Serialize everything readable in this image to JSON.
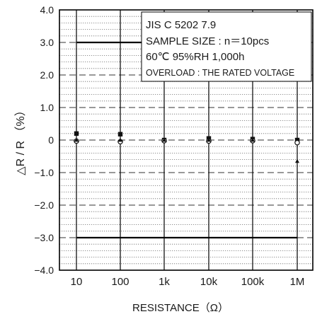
{
  "chart_data": {
    "type": "scatter",
    "xlabel": "RESISTANCE（Ω）",
    "ylabel": "△R / R （%）",
    "x_categories": [
      "10",
      "100",
      "1k",
      "10k",
      "100k",
      "1M"
    ],
    "y_ticks": [
      "4.0",
      "3.0",
      "2.0",
      "1.0",
      "0",
      "−1.0",
      "−2.0",
      "−3.0",
      "−4.0"
    ],
    "ylim": [
      -4.0,
      4.0
    ],
    "grid": "dotted minor every 0.2%, dashed major every 1.0%",
    "limits": [
      3.0,
      -3.0
    ],
    "annotations": [
      "JIS C 5202 7.9",
      "SAMPLE SIZE : n＝10pcs",
      "60℃ 95%RH 1,000h",
      "OVERLOAD : THE RATED VOLTAGE"
    ],
    "series": [
      {
        "marker": "filled-square",
        "values": [
          0.2,
          0.18,
          0.0,
          0.05,
          0.03,
          0.0
        ]
      },
      {
        "marker": "open-circle",
        "values": [
          -0.03,
          -0.05,
          -0.02,
          -0.03,
          -0.02,
          -0.08
        ]
      },
      {
        "marker": "triangle",
        "values": [
          0.0,
          0.0,
          0.0,
          0.0,
          0.0,
          -0.65
        ]
      }
    ]
  }
}
